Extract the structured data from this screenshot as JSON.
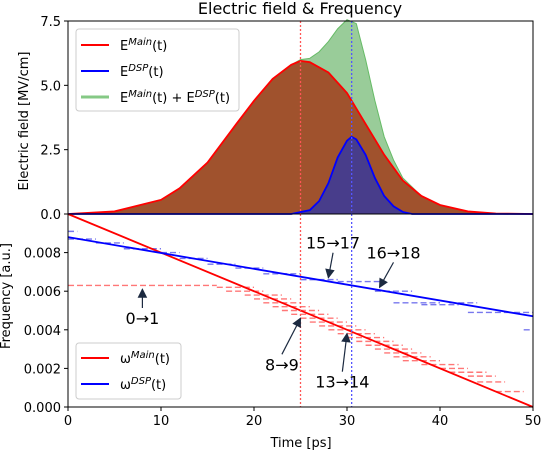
{
  "chart_data": [
    {
      "type": "area",
      "title": "Electric field & Frequency",
      "xlabel": "",
      "ylabel": "Electric field [MV/cm]",
      "xlim": [
        0,
        50
      ],
      "ylim": [
        0,
        7.5
      ],
      "yticks": [
        "0.0",
        "2.5",
        "5.0",
        "7.5"
      ],
      "grid": false,
      "legend_position": "top-left",
      "series": [
        {
          "name": "E^{Main}(t)",
          "color": "#ff0000",
          "fill": "#a0522d",
          "x": [
            0,
            5,
            10,
            12,
            15,
            18,
            20,
            22,
            24,
            25,
            26,
            28,
            30,
            32,
            34,
            35,
            36,
            38,
            40,
            43,
            46,
            50
          ],
          "values": [
            0.0,
            0.1,
            0.55,
            1.0,
            2.0,
            3.45,
            4.4,
            5.25,
            5.8,
            5.95,
            5.9,
            5.5,
            4.7,
            3.5,
            2.3,
            1.8,
            1.3,
            0.7,
            0.35,
            0.1,
            0.02,
            0.0
          ]
        },
        {
          "name": "E^{DSP}(t)",
          "color": "#0000ff",
          "fill": "#483d8b",
          "x": [
            24,
            26,
            27,
            28,
            29,
            30,
            30.5,
            31,
            32,
            33,
            34,
            35,
            36,
            37
          ],
          "values": [
            0.0,
            0.15,
            0.5,
            1.2,
            2.2,
            2.85,
            3.0,
            2.9,
            2.3,
            1.4,
            0.7,
            0.3,
            0.08,
            0.0
          ]
        },
        {
          "name": "E^{Main}(t) + E^{DSP}(t)",
          "color": "#66bb66",
          "fill": "#99cc99",
          "x": [
            0,
            5,
            10,
            12,
            15,
            18,
            20,
            22,
            24,
            25,
            26,
            27,
            28,
            29,
            30,
            31,
            32,
            33,
            34,
            35,
            36,
            38,
            40,
            43,
            46,
            50
          ],
          "values": [
            0.0,
            0.1,
            0.55,
            1.0,
            2.0,
            3.45,
            4.4,
            5.25,
            5.8,
            6.0,
            6.05,
            6.3,
            6.7,
            7.2,
            7.55,
            7.4,
            6.0,
            4.4,
            3.0,
            2.1,
            1.4,
            0.7,
            0.35,
            0.1,
            0.02,
            0.0
          ]
        }
      ],
      "vlines": [
        {
          "x": 25,
          "color": "#ff5555"
        },
        {
          "x": 30.5,
          "color": "#5555ff"
        }
      ]
    },
    {
      "type": "line",
      "title": "",
      "xlabel": "Time [ps]",
      "ylabel": "Frequency [a.u.]",
      "xlim": [
        0,
        50
      ],
      "ylim": [
        0,
        0.01
      ],
      "xticks": [
        "0",
        "10",
        "20",
        "30",
        "40",
        "50"
      ],
      "yticks": [
        "0.000",
        "0.002",
        "0.004",
        "0.006",
        "0.008"
      ],
      "grid": false,
      "legend_position": "bottom-left",
      "series": [
        {
          "name": "ω^{Main}(t)",
          "color": "#ff0000",
          "x": [
            0,
            50
          ],
          "values": [
            0.01,
            0.0
          ]
        },
        {
          "name": "ω^{DSP}(t)",
          "color": "#0000ff",
          "x": [
            0,
            50
          ],
          "values": [
            0.0088,
            0.0047
          ]
        }
      ],
      "levels": [
        {
          "series": "ω^{Main}(t)",
          "color": "#ff7777",
          "segments": [
            [
              0,
              16,
              0.0063
            ],
            [
              16,
              20,
              0.0062
            ],
            [
              17,
              21,
              0.006
            ],
            [
              19,
              23,
              0.0058
            ],
            [
              20,
              24,
              0.0056
            ],
            [
              21,
              25,
              0.0054
            ],
            [
              22,
              26,
              0.0052
            ],
            [
              23,
              27,
              0.005
            ],
            [
              24,
              28,
              0.0048
            ],
            [
              25,
              29,
              0.0046
            ],
            [
              26,
              30,
              0.0044
            ],
            [
              27,
              31,
              0.0042
            ],
            [
              28,
              32,
              0.004
            ],
            [
              29,
              33,
              0.0038
            ],
            [
              30,
              34,
              0.0036
            ],
            [
              31,
              35,
              0.0034
            ],
            [
              32,
              36,
              0.0032
            ],
            [
              33,
              37,
              0.003
            ],
            [
              34,
              38,
              0.0028
            ],
            [
              35,
              39,
              0.0026
            ],
            [
              36,
              40,
              0.0024
            ],
            [
              38,
              42,
              0.0022
            ],
            [
              40,
              43,
              0.002
            ],
            [
              41,
              45,
              0.0018
            ],
            [
              43,
              46,
              0.0016
            ],
            [
              44,
              47,
              0.0013
            ],
            [
              46,
              49,
              0.0008
            ]
          ]
        },
        {
          "series": "ω^{DSP}(t)",
          "color": "#7777ee",
          "segments": [
            [
              0,
              1,
              0.0091
            ],
            [
              0,
              3,
              0.0087
            ],
            [
              3,
              6,
              0.0085
            ],
            [
              6,
              10,
              0.0082
            ],
            [
              10,
              12,
              0.008
            ],
            [
              12,
              15,
              0.0077
            ],
            [
              15,
              18,
              0.0074
            ],
            [
              18,
              21,
              0.0072
            ],
            [
              21,
              25,
              0.0069
            ],
            [
              25,
              29,
              0.0066
            ],
            [
              29,
              34,
              0.0065
            ],
            [
              33,
              37,
              0.006
            ],
            [
              35,
              40,
              0.0054
            ],
            [
              38,
              42,
              0.0053
            ],
            [
              41,
              44,
              0.0054
            ],
            [
              43,
              47,
              0.0049
            ],
            [
              47,
              50,
              0.0049
            ],
            [
              49,
              50,
              0.004
            ]
          ]
        }
      ],
      "vlines": [
        {
          "x": 25,
          "color": "#ff5555"
        },
        {
          "x": 30.5,
          "color": "#5555ff"
        }
      ],
      "annotations": [
        {
          "text": "0→1",
          "x": 8,
          "y": 0.0061,
          "label_x": 8,
          "label_y": 0.0043
        },
        {
          "text": "8→9",
          "x": 25,
          "y": 0.0046,
          "label_x": 23,
          "label_y": 0.0019
        },
        {
          "text": "13→14",
          "x": 30,
          "y": 0.0038,
          "label_x": 29.5,
          "label_y": 0.001
        },
        {
          "text": "15→17",
          "x": 28,
          "y": 0.0067,
          "label_x": 28.5,
          "label_y": 0.0082
        },
        {
          "text": "16→18",
          "x": 33.5,
          "y": 0.0062,
          "label_x": 35,
          "label_y": 0.0077
        }
      ]
    }
  ]
}
